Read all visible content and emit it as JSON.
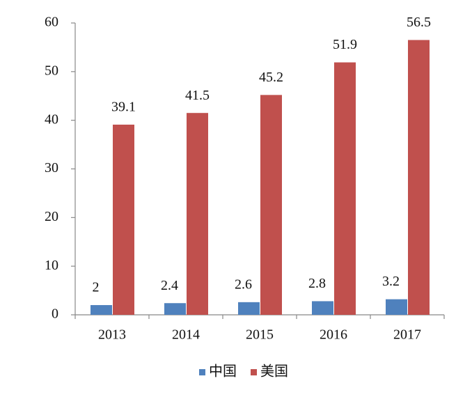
{
  "chart_data": {
    "type": "bar",
    "categories": [
      "2013",
      "2014",
      "2015",
      "2016",
      "2017"
    ],
    "series": [
      {
        "name": "中国",
        "color": "#4f81bd",
        "values": [
          2,
          2.4,
          2.6,
          2.8,
          3.2
        ]
      },
      {
        "name": "美国",
        "color": "#c0504d",
        "values": [
          39.1,
          41.5,
          45.2,
          51.9,
          56.5
        ]
      }
    ],
    "ylim": [
      0,
      60
    ],
    "yticks": [
      0,
      10,
      20,
      30,
      40,
      50,
      60
    ],
    "legend": "bottom"
  }
}
